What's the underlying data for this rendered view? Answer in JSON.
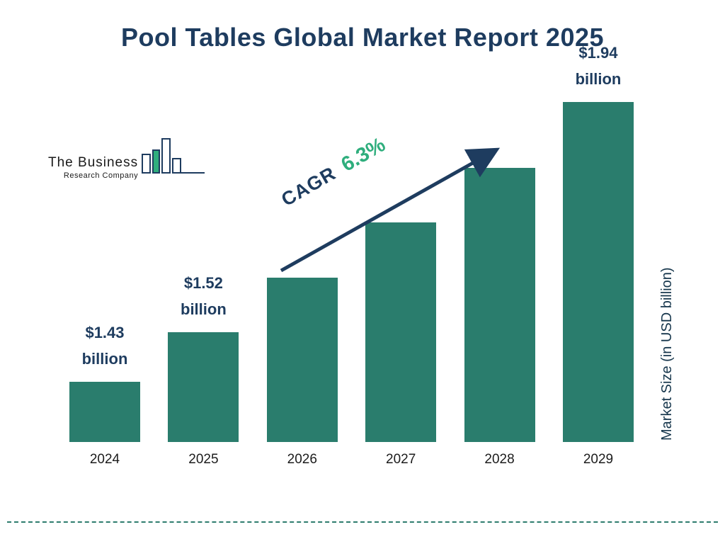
{
  "title": "Pool Tables Global Market Report 2025",
  "logo": {
    "line1": "The Business",
    "line2": "Research Company"
  },
  "cagr": {
    "prefix": "CAGR",
    "value": "6.3%"
  },
  "y_axis_label": "Market Size (in USD billion)",
  "colors": {
    "bar": "#2a7d6d",
    "navy": "#1e3c5f",
    "green": "#2fae7d",
    "dashed_line": "#2e7d6e"
  },
  "chart_data": {
    "type": "bar",
    "title": "Pool Tables Global Market Report 2025",
    "categories": [
      "2024",
      "2025",
      "2026",
      "2027",
      "2028",
      "2029"
    ],
    "values": [
      1.43,
      1.52,
      1.62,
      1.72,
      1.82,
      1.94
    ],
    "bar_labels": [
      "$1.43 billion",
      "$1.52 billion",
      null,
      null,
      null,
      "$1.94 billion"
    ],
    "xlabel": "",
    "ylabel": "Market Size (in USD billion)",
    "ylim": [
      1.32,
      1.94
    ],
    "annotation": "CAGR 6.3%",
    "grid": false,
    "legend": false,
    "bar_color": "#2a7d6d"
  }
}
